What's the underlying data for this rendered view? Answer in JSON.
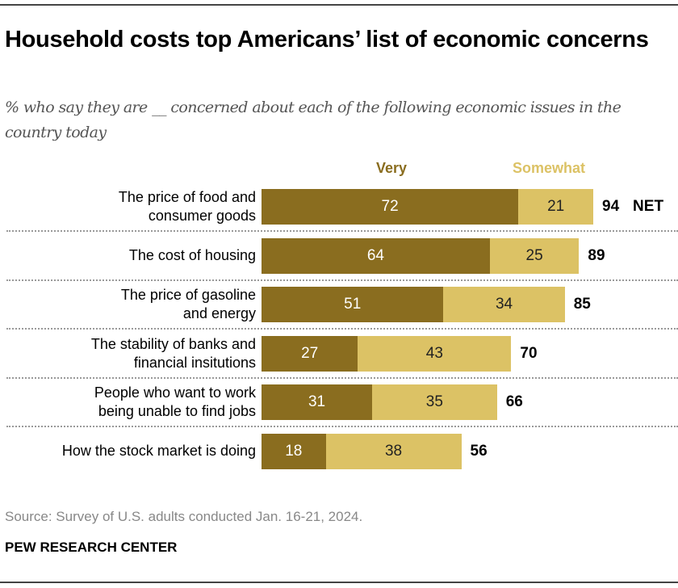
{
  "title": "Household costs top Americans’ list of economic concerns",
  "subtitle": "% who say they are __ concerned about each of the following economic issues in the country today",
  "legend": {
    "very": "Very",
    "somewhat": "Somewhat"
  },
  "colors": {
    "very": "#8a6d1f",
    "somewhat": "#dcc265",
    "very_text": "#ffffff",
    "somewhat_text": "#222222"
  },
  "source": "Source: Survey of U.S. adults conducted Jan. 16-21, 2024.",
  "brand": "PEW RESEARCH CENTER",
  "net_suffix": "NET",
  "chart_data": {
    "type": "bar",
    "orientation": "horizontal",
    "stacked": true,
    "title": "Household costs top Americans’ list of economic concerns",
    "subtitle": "% who say they are __ concerned about each of the following economic issues in the country today",
    "categories": [
      [
        "The price of food and",
        "consumer goods"
      ],
      [
        "The cost of housing"
      ],
      [
        "The price of gasoline",
        "and energy"
      ],
      [
        "The stability of banks and",
        "financial insitutions"
      ],
      [
        "People who want to work",
        "being unable to find jobs"
      ],
      [
        "How the stock market is doing"
      ]
    ],
    "series": [
      {
        "name": "Very",
        "values": [
          72,
          64,
          51,
          27,
          31,
          18
        ]
      },
      {
        "name": "Somewhat",
        "values": [
          21,
          25,
          34,
          43,
          35,
          38
        ]
      }
    ],
    "net": [
      94,
      89,
      85,
      70,
      66,
      56
    ],
    "net_label": "NET",
    "legend_position": "top",
    "xlim": [
      0,
      100
    ],
    "grid": false
  }
}
